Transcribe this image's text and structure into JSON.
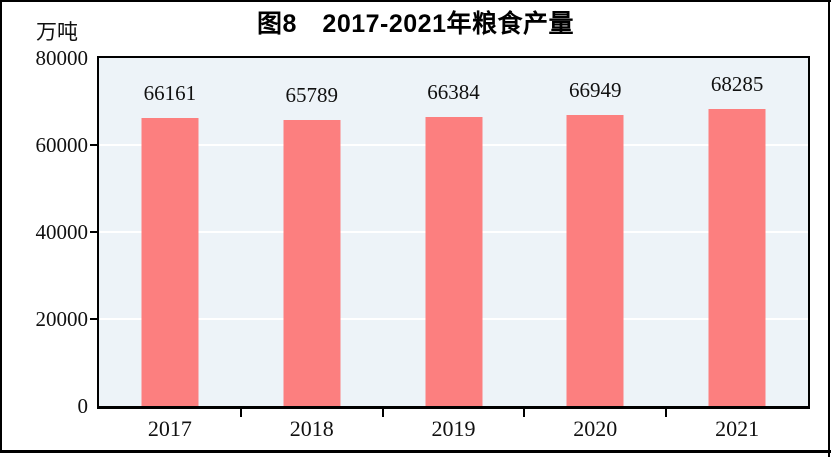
{
  "chart": {
    "title": "图8　2017-2021年粮食产量",
    "unit_label": "万吨"
  },
  "chart_data": {
    "type": "bar",
    "title": "图8　2017-2021年粮食产量",
    "categories": [
      "2017",
      "2018",
      "2019",
      "2020",
      "2021"
    ],
    "values": [
      66161,
      65789,
      66384,
      66949,
      68285
    ],
    "xlabel": "",
    "ylabel": "万吨",
    "ylim": [
      0,
      80000
    ],
    "yticks": [
      0,
      20000,
      40000,
      60000,
      80000
    ],
    "grid": "horizontal-white-gridlines",
    "legend": false,
    "bar_color": "#fc7f7f",
    "plot_background": "#edf3f8",
    "gridline_color": "#ffffff",
    "axis_color": "#000000",
    "text_color": "#111111"
  }
}
